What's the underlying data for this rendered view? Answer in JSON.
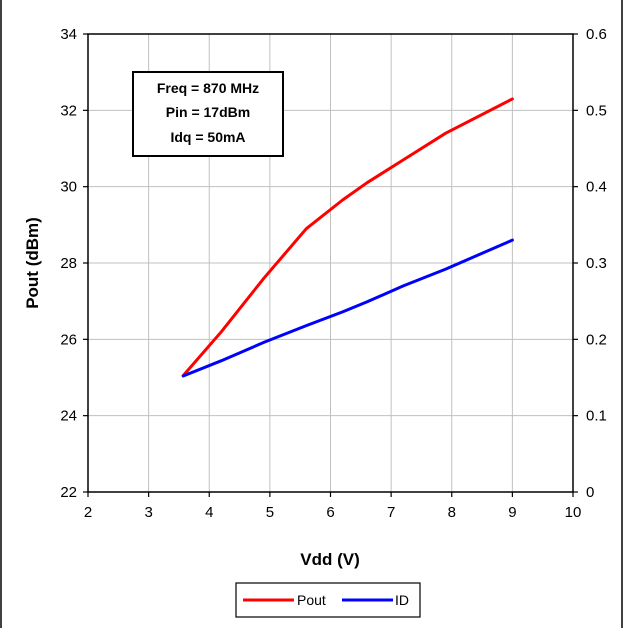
{
  "chart_data": {
    "type": "line",
    "title": "",
    "xlabel": "Vdd (V)",
    "ylabel": "Pout (dBm)",
    "y2label": "",
    "xlim": [
      2,
      10
    ],
    "ylim": [
      22,
      34
    ],
    "y2lim": [
      0,
      0.6
    ],
    "xticks": [
      "2",
      "3",
      "4",
      "5",
      "6",
      "7",
      "8",
      "9",
      "10"
    ],
    "yticks": [
      "22",
      "24",
      "26",
      "28",
      "30",
      "32",
      "34"
    ],
    "y2ticks": [
      "0",
      "0.1",
      "0.2",
      "0.3",
      "0.4",
      "0.5",
      "0.6"
    ],
    "grid": true,
    "legend_position": "bottom-center",
    "annotation": [
      "Freq = 870 MHz",
      "Pin = 17dBm",
      "Idq = 50mA"
    ],
    "series": [
      {
        "name": "Pout",
        "axis": "left",
        "color": "#ff0000",
        "x": [
          3.57,
          4.2,
          4.9,
          5.6,
          6.2,
          6.6,
          7.2,
          7.9,
          9.0
        ],
        "y": [
          25.05,
          26.2,
          27.6,
          28.9,
          29.65,
          30.1,
          30.7,
          31.4,
          32.3
        ]
      },
      {
        "name": "ID",
        "axis": "right",
        "color": "#0000ff",
        "x": [
          3.57,
          4.2,
          4.9,
          5.6,
          6.2,
          6.6,
          7.2,
          7.9,
          9.0
        ],
        "y": [
          0.152,
          0.172,
          0.196,
          0.218,
          0.236,
          0.249,
          0.27,
          0.292,
          0.33
        ]
      }
    ]
  }
}
